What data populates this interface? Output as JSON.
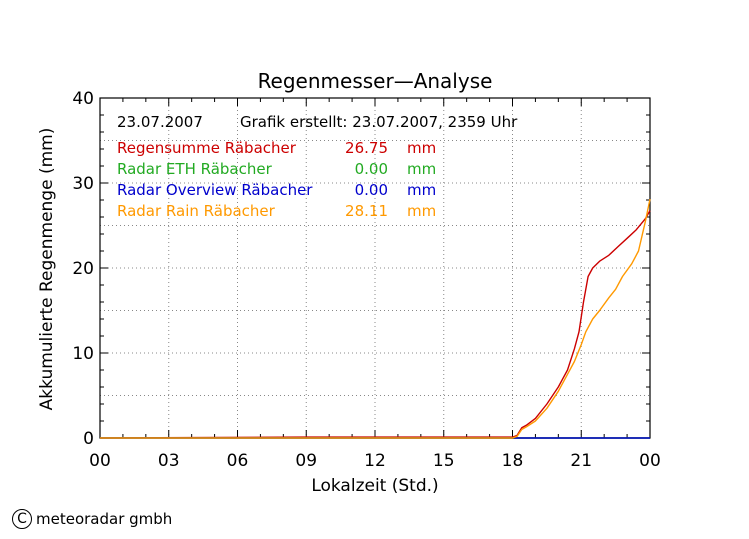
{
  "chart_data": {
    "type": "line",
    "title": "Regenmesser—Analyse",
    "xlabel": "Lokalzeit (Std.)",
    "ylabel": "Akkumulierte Regenmenge (mm)",
    "x_ticks": [
      "00",
      "03",
      "06",
      "09",
      "12",
      "15",
      "18",
      "21",
      "00"
    ],
    "x_tick_values": [
      0,
      3,
      6,
      9,
      12,
      15,
      18,
      21,
      24
    ],
    "xlim": [
      0,
      24
    ],
    "y_ticks": [
      "0",
      "10",
      "20",
      "30",
      "40"
    ],
    "y_tick_values": [
      0,
      10,
      20,
      30,
      40
    ],
    "ylim": [
      0,
      40
    ],
    "grid": true,
    "legend_position": "top-left",
    "date": "23.07.2007",
    "created": "Grafik erstellt: 23.07.2007, 2359 Uhr",
    "series": [
      {
        "name": "Regensumme Räbacher",
        "value_text": "26.75",
        "unit": "mm",
        "color": "#cc0000",
        "x": [
          0,
          9,
          18,
          18.2,
          18.4,
          18.6,
          19.0,
          19.5,
          20.0,
          20.4,
          20.7,
          20.9,
          21.1,
          21.3,
          21.5,
          21.8,
          22.2,
          22.6,
          23.0,
          23.4,
          23.8,
          24.0
        ],
        "values": [
          0,
          0.1,
          0.1,
          0.3,
          1.2,
          1.5,
          2.3,
          4.0,
          6.0,
          8.0,
          10.5,
          12.5,
          16.0,
          19.0,
          20.0,
          20.8,
          21.5,
          22.5,
          23.5,
          24.5,
          25.8,
          26.75
        ]
      },
      {
        "name": "Radar ETH Räbacher",
        "value_text": "0.00",
        "unit": "mm",
        "color": "#22aa22",
        "x": [
          0,
          24
        ],
        "values": [
          0,
          0
        ]
      },
      {
        "name": "Radar Overview Räbacher",
        "value_text": "0.00",
        "unit": "mm",
        "color": "#0000cc",
        "x": [
          0,
          24
        ],
        "values": [
          0,
          0
        ]
      },
      {
        "name": "Radar Rain Räbacher",
        "value_text": "28.11",
        "unit": "mm",
        "color": "#ff9900",
        "x": [
          0,
          18,
          18.2,
          18.4,
          18.6,
          19.0,
          19.5,
          20.0,
          20.4,
          20.7,
          21.0,
          21.2,
          21.5,
          21.8,
          22.2,
          22.5,
          22.8,
          23.2,
          23.5,
          23.8,
          24.0
        ],
        "values": [
          0,
          0,
          0.2,
          1.0,
          1.3,
          2.0,
          3.5,
          5.5,
          7.5,
          9.0,
          11.0,
          12.5,
          14.0,
          15.0,
          16.5,
          17.5,
          19.0,
          20.5,
          22.0,
          25.5,
          28.11
        ]
      }
    ]
  },
  "footer": {
    "copyright_symbol": "C",
    "company": "meteoradar gmbh"
  }
}
